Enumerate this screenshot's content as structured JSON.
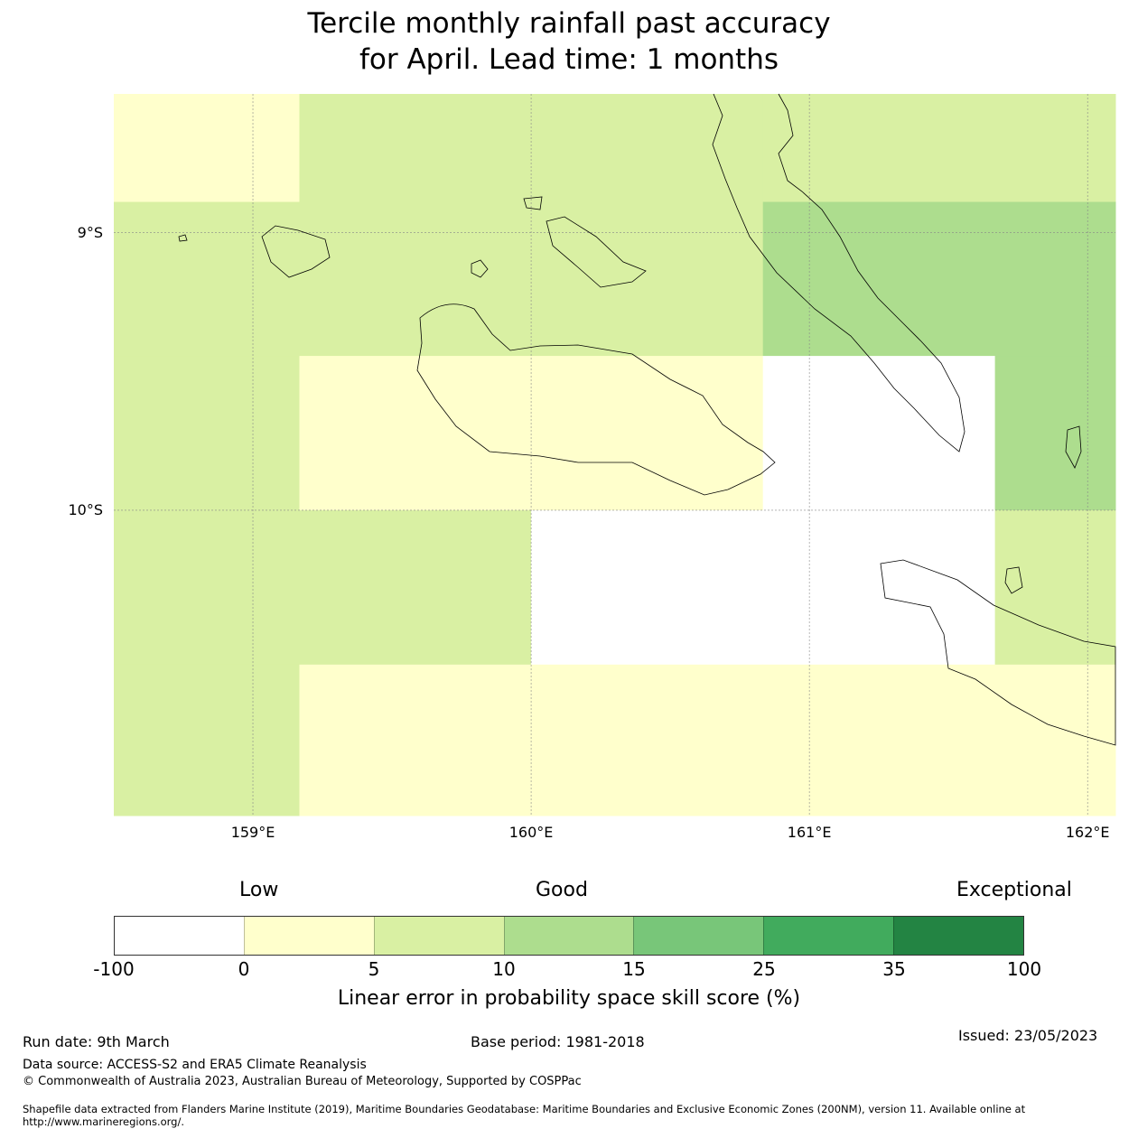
{
  "title": {
    "line1": "Tercile monthly rainfall past accuracy",
    "line2": "for April. Lead time: 1 months"
  },
  "map": {
    "lon_range": [
      158.5,
      162.1
    ],
    "lat_range": [
      -8.5,
      -11.1
    ],
    "lat_ticks": [
      {
        "value": -9,
        "label": "9°S"
      },
      {
        "value": -10,
        "label": "10°S"
      }
    ],
    "lon_ticks": [
      {
        "value": 159,
        "label": "159°E"
      },
      {
        "value": 160,
        "label": "160°E"
      },
      {
        "value": 161,
        "label": "161°E"
      },
      {
        "value": 162,
        "label": "162°E"
      }
    ],
    "grid_lon_edges": [
      158.5,
      159.167,
      160.0,
      160.833,
      161.667,
      162.1
    ],
    "grid_lat_edges": [
      -8.5,
      -8.889,
      -9.444,
      -10.0,
      -10.556,
      -11.1
    ],
    "grid_categories": [
      [
        1,
        2,
        2,
        2,
        2
      ],
      [
        2,
        2,
        2,
        3,
        3
      ],
      [
        2,
        1,
        1,
        0,
        3
      ],
      [
        2,
        2,
        0,
        0,
        2
      ],
      [
        2,
        1,
        1,
        1,
        1
      ]
    ]
  },
  "colorbar": {
    "labels_top": [
      "Low",
      "Good",
      "Exceptional"
    ],
    "bounds": [
      "-100",
      "0",
      "5",
      "10",
      "15",
      "25",
      "35",
      "100"
    ],
    "colors": [
      "#ffffff",
      "#ffffcc",
      "#d9f0a3",
      "#addd8e",
      "#78c679",
      "#41ab5d",
      "#238443"
    ],
    "title": "Linear error in probability space skill score (%)"
  },
  "footer": {
    "run_date": "Run date: 9th March",
    "base_period": "Base period: 1981-2018",
    "issued": "Issued: 23/05/2023",
    "data_source": "Data source: ACCESS-S2 and ERA5 Climate Reanalysis",
    "copyright": "© Commonwealth of Australia 2023, Australian Bureau of Meteorology, Supported by COSPPac",
    "shapefile_line1": "Shapefile data extracted from Flanders Marine Institute (2019), Maritime Boundaries Geodatabase: Maritime Boundaries and Exclusive Economic Zones (200NM), version 11. Available online at",
    "shapefile_line2": "http://www.marineregions.org/."
  }
}
